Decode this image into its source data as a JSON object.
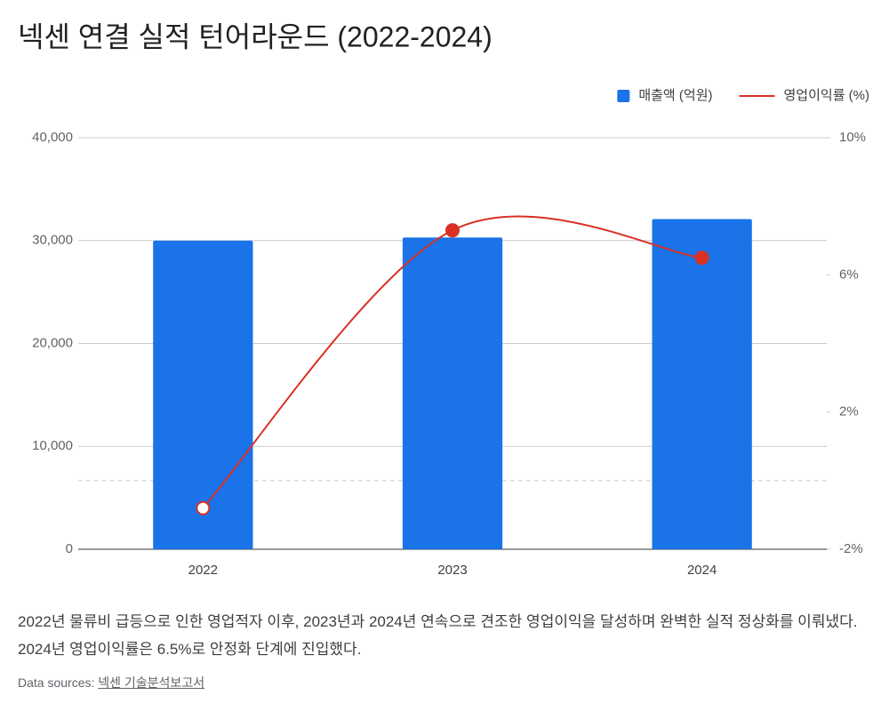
{
  "chart_data": {
    "type": "combo",
    "title": "넥센 연결 실적 턴어라운드 (2022-2024)",
    "categories": [
      "2022",
      "2023",
      "2024"
    ],
    "series": [
      {
        "name": "매출액 (억원)",
        "type": "bar",
        "color": "#1a73e8",
        "values": [
          30000,
          30300,
          32100
        ]
      },
      {
        "name": "영업이익률 (%)",
        "type": "line",
        "axis": "y2",
        "color": "#d93025",
        "values": [
          -0.8,
          7.3,
          6.5
        ]
      }
    ],
    "ylim": [
      0,
      40000
    ],
    "yticks": [
      0,
      {
        "value": 10000,
        "label": "10,000"
      },
      {
        "value": 20000,
        "label": "20,000"
      },
      {
        "value": 30000,
        "label": "30,000"
      },
      {
        "value": 40000,
        "label": "40,000"
      }
    ],
    "y2lim": [
      -2,
      10
    ],
    "y2ticks": [
      {
        "value": -2,
        "label": "-2%"
      },
      {
        "value": 2,
        "label": "2%"
      },
      {
        "value": 6,
        "label": "6%"
      },
      {
        "value": 10,
        "label": "10%"
      }
    ],
    "grid": true,
    "y2_zero_line": true,
    "legend": "top-right",
    "caption": "2022년 물류비 급등으로 인한 영업적자 이후, 2023년과 2024년 연속으로 견조한 영업이익을 달성하며 완벽한 실적 정상화를 이뤄냈다. 2024년 영업이익률은 6.5%로 안정화 단계에 진입했다.",
    "source_prefix": "Data sources:",
    "source": "넥센 기술분석보고서"
  }
}
